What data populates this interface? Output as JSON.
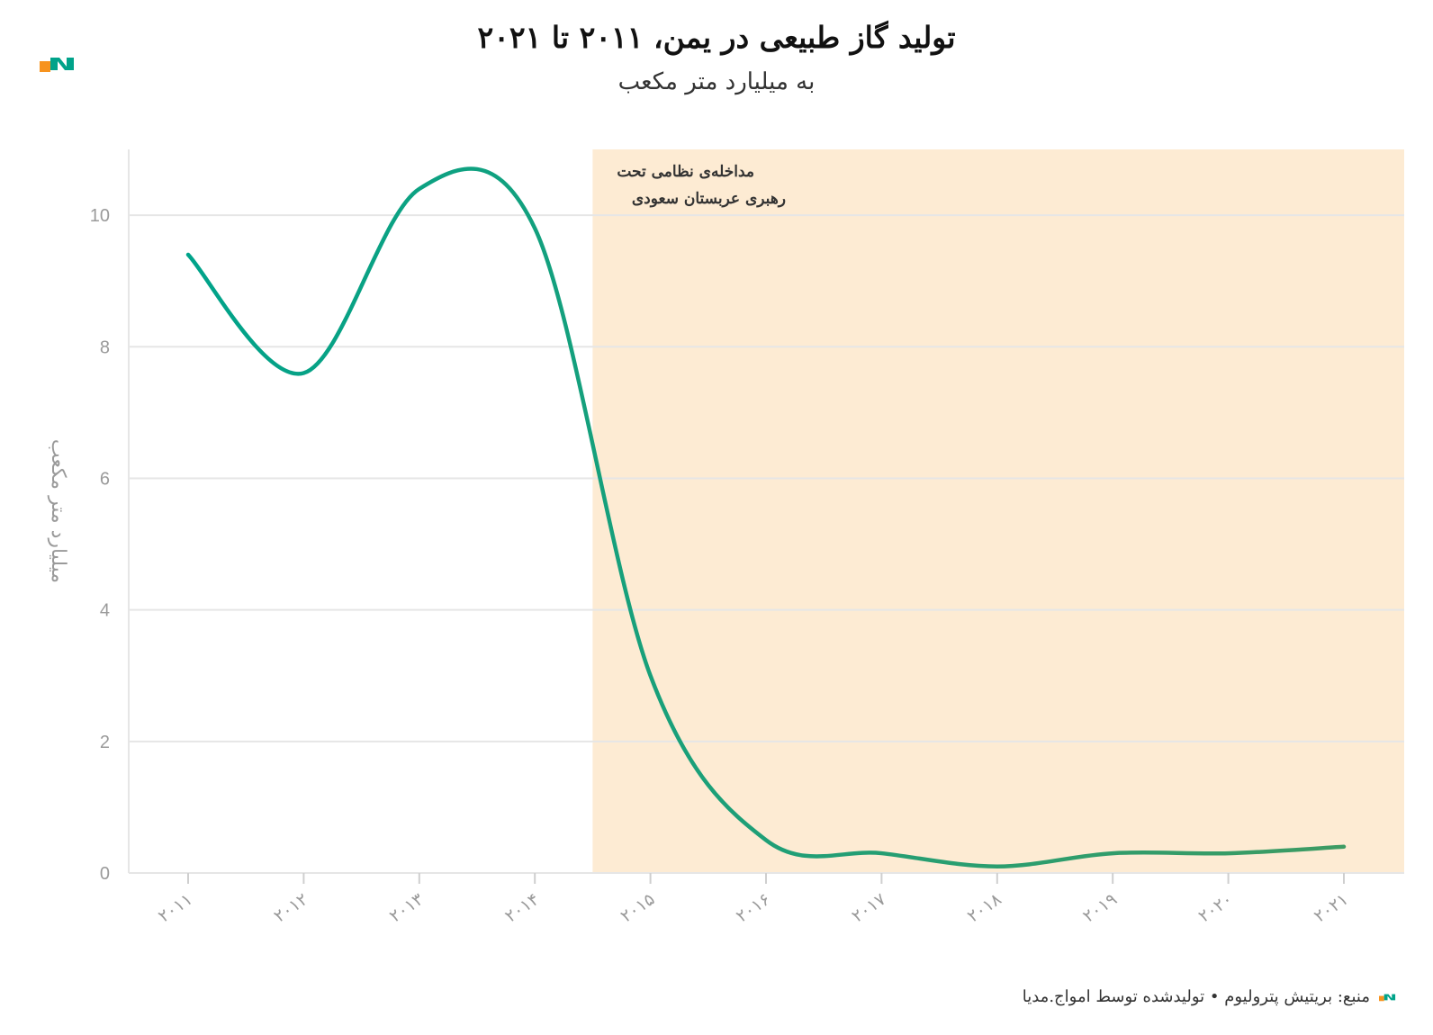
{
  "title": "تولید گاز طبیعی در یمن، ۲۰۱۱ تا ۲۰۲۱",
  "subtitle": "به میلیارد متر مکعب",
  "footer": "منبع: بریتیش پترولیوم • تولیدشده توسط امواج.مدیا",
  "colors": {
    "line_start": "#00a38a",
    "line_end": "#3d9b63",
    "highlight": "#fdebd3",
    "grid": "#e6e6e6",
    "logo_orange": "#f7931e",
    "logo_teal": "#00a38a"
  },
  "chart_data": {
    "type": "line",
    "title": "تولید گاز طبیعی در یمن، ۲۰۱۱ تا ۲۰۲۱",
    "subtitle": "به میلیارد متر مکعب",
    "ylabel": "میلیارد متر مکعب",
    "xlabel": "",
    "x": [
      "۲۰۱۱",
      "۲۰۱۲",
      "۲۰۱۳",
      "۲۰۱۴",
      "۲۰۱۵",
      "۲۰۱۶",
      "۲۰۱۷",
      "۲۰۱۸",
      "۲۰۱۹",
      "۲۰۲۰",
      "۲۰۲۱"
    ],
    "values": [
      9.4,
      7.6,
      10.4,
      9.8,
      3.0,
      0.5,
      0.3,
      0.1,
      0.3,
      0.3,
      0.4
    ],
    "ylim": [
      0,
      11
    ],
    "yticks": [
      "0",
      "2",
      "4",
      "6",
      "8",
      "10"
    ],
    "grid": true,
    "highlight": {
      "from": 3.5,
      "to": 10.5,
      "label_line1": "مداخله‌ی نظامی تحت",
      "label_line2": "رهبری عربستان سعودی"
    }
  }
}
